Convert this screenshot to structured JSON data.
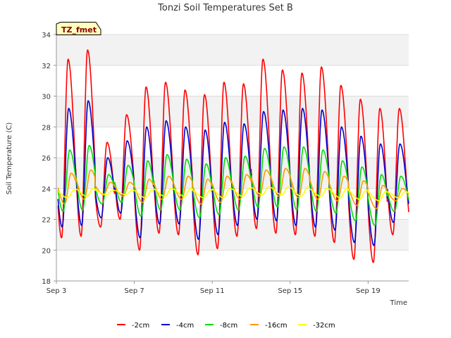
{
  "chart_data": {
    "type": "line",
    "title": "Tonzi Soil Temperatures Set B",
    "xlabel": "Time",
    "ylabel": "Soil Temperature (C)",
    "site_label": "TZ_fmet",
    "xlim": [
      "2023-09-03",
      "2023-09-21T02:00"
    ],
    "ylim": [
      18,
      34
    ],
    "y_ticks": [
      18,
      20,
      22,
      24,
      26,
      28,
      30,
      32,
      34
    ],
    "x_ticks": [
      {
        "date": "2023-09-03",
        "label": "Sep 3"
      },
      {
        "date": "2023-09-07",
        "label": "Sep 7"
      },
      {
        "date": "2023-09-11",
        "label": "Sep 11"
      },
      {
        "date": "2023-09-15",
        "label": "Sep 15"
      },
      {
        "date": "2023-09-19",
        "label": "Sep 19"
      }
    ],
    "x_start": "2023-09-03T02:00",
    "legend_position": "bottom",
    "grid": true,
    "series": [
      {
        "name": "-2cm",
        "color": "#ff0000",
        "daily_min": [
          20.8,
          20.9,
          21.5,
          22.0,
          20.0,
          21.1,
          21.0,
          19.7,
          20.1,
          20.9,
          21.4,
          21.1,
          21.0,
          20.9,
          20.5,
          19.4,
          19.2,
          21.0
        ],
        "daily_max": [
          32.4,
          33.0,
          27.0,
          28.8,
          30.6,
          30.9,
          30.4,
          30.1,
          30.9,
          30.8,
          32.4,
          31.7,
          31.5,
          31.9,
          30.7,
          29.8,
          29.2,
          29.2
        ]
      },
      {
        "name": "-4cm",
        "color": "#0000cc",
        "daily_min": [
          21.5,
          21.6,
          22.1,
          22.4,
          20.8,
          21.7,
          21.7,
          20.7,
          21.0,
          21.6,
          22.0,
          21.9,
          21.6,
          21.5,
          21.3,
          20.5,
          20.3,
          21.8
        ],
        "daily_max": [
          29.2,
          29.7,
          26.0,
          27.1,
          28.0,
          28.4,
          28.0,
          27.8,
          28.3,
          28.2,
          29.0,
          29.1,
          29.2,
          29.1,
          28.0,
          27.4,
          26.9,
          26.9
        ]
      },
      {
        "name": "-8cm",
        "color": "#00dd00",
        "daily_min": [
          22.5,
          22.6,
          23.0,
          23.1,
          22.2,
          22.6,
          22.6,
          22.1,
          22.3,
          22.6,
          22.8,
          22.8,
          22.6,
          22.5,
          22.4,
          21.9,
          21.6,
          22.5
        ],
        "daily_max": [
          26.5,
          26.8,
          24.9,
          25.5,
          25.8,
          26.2,
          25.9,
          25.6,
          26.0,
          26.1,
          26.6,
          26.7,
          26.7,
          26.5,
          25.8,
          25.4,
          24.9,
          24.8
        ]
      },
      {
        "name": "-16cm",
        "color": "#ff9900",
        "daily_min": [
          23.0,
          23.3,
          23.6,
          23.5,
          23.1,
          23.3,
          23.3,
          23.0,
          23.1,
          23.3,
          23.5,
          23.5,
          23.4,
          23.3,
          23.2,
          22.9,
          22.7,
          23.2
        ],
        "daily_max": [
          25.0,
          25.2,
          24.4,
          24.4,
          24.6,
          24.8,
          24.8,
          24.6,
          24.8,
          24.9,
          25.2,
          25.3,
          25.3,
          25.1,
          24.8,
          24.5,
          24.2,
          24.0
        ]
      },
      {
        "name": "-32cm",
        "color": "#ffff00",
        "daily_min": [
          23.4,
          23.5,
          23.6,
          23.6,
          23.4,
          23.5,
          23.5,
          23.4,
          23.4,
          23.5,
          23.6,
          23.6,
          23.5,
          23.5,
          23.4,
          23.3,
          23.2,
          23.4
        ],
        "daily_max": [
          23.9,
          24.0,
          23.9,
          23.9,
          23.9,
          24.0,
          24.0,
          23.9,
          24.0,
          24.0,
          24.1,
          24.1,
          24.1,
          24.0,
          24.0,
          23.9,
          23.8,
          23.8
        ]
      }
    ]
  }
}
